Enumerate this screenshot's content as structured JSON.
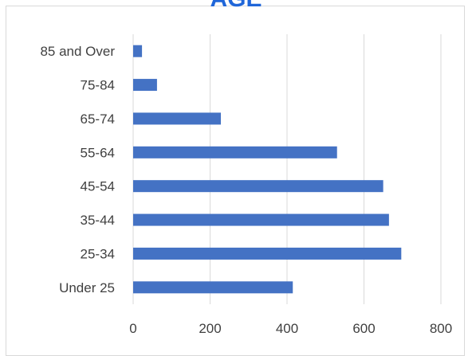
{
  "chart_data": {
    "type": "bar",
    "orientation": "horizontal",
    "title": "AGE",
    "categories": [
      "Under 25",
      "25-34",
      "35-44",
      "45-54",
      "55-64",
      "65-74",
      "75-84",
      "85 and Over"
    ],
    "values": [
      415,
      697,
      665,
      650,
      530,
      228,
      62,
      23
    ],
    "xlim": [
      0,
      800
    ],
    "xticks": [
      "0",
      "200",
      "400",
      "600",
      "800"
    ],
    "grid": true,
    "legend": "none",
    "bar_color": "#4472c4",
    "grid_color": "#d9d9d9",
    "title_color": "#1f66d9"
  }
}
